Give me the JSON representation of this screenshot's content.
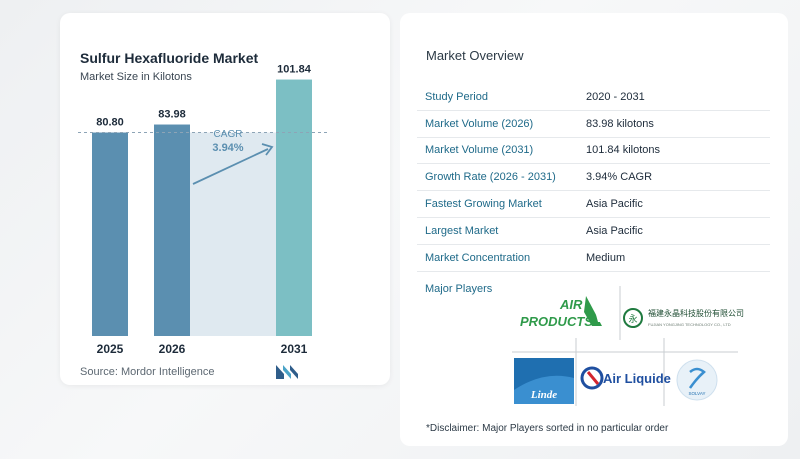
{
  "chart_data": {
    "type": "bar",
    "title": "Sulfur Hexafluoride Market",
    "subtitle": "Market Size in Kilotons",
    "categories": [
      "2025",
      "2026",
      "2031"
    ],
    "values": [
      80.8,
      83.98,
      101.84
    ],
    "value_labels": [
      "80.80",
      "83.98",
      "101.84"
    ],
    "cagr_label": "CAGR",
    "cagr_value": "3.94%",
    "colors": {
      "bar": "#5b8fb0",
      "bar_last": "#7cbfc4",
      "band": "#dfe9f0",
      "arrow": "#5b8fb0"
    },
    "ylim": [
      0,
      110
    ],
    "grid": false,
    "source": "Source:  Mordor Intelligence"
  },
  "overview": {
    "title": "Market Overview",
    "rows": [
      {
        "label": "Study Period",
        "value": "2020 - 2031"
      },
      {
        "label": "Market Volume (2026)",
        "value": "83.98 kilotons"
      },
      {
        "label": "Market Volume (2031)",
        "value": "101.84 kilotons"
      },
      {
        "label": "Growth Rate (2026 - 2031)",
        "value": "3.94% CAGR"
      },
      {
        "label": "Fastest Growing Market",
        "value": "Asia Pacific"
      },
      {
        "label": "Largest Market",
        "value": "Asia Pacific"
      },
      {
        "label": "Market Concentration",
        "value": "Medium"
      }
    ],
    "major_players_label": "Major Players",
    "players": {
      "air_products": [
        "AIR",
        "PRODUCTS"
      ],
      "fujian": [
        "福建永晶科技股份有限公司",
        "FUJIAN YONGJING TECHNOLOGY CO., LTD"
      ],
      "linde": "Linde",
      "air_liquide": "Air Liquide",
      "solvay": "SOLVAY"
    },
    "disclaimer": "*Disclaimer: Major Players sorted in no particular order"
  }
}
